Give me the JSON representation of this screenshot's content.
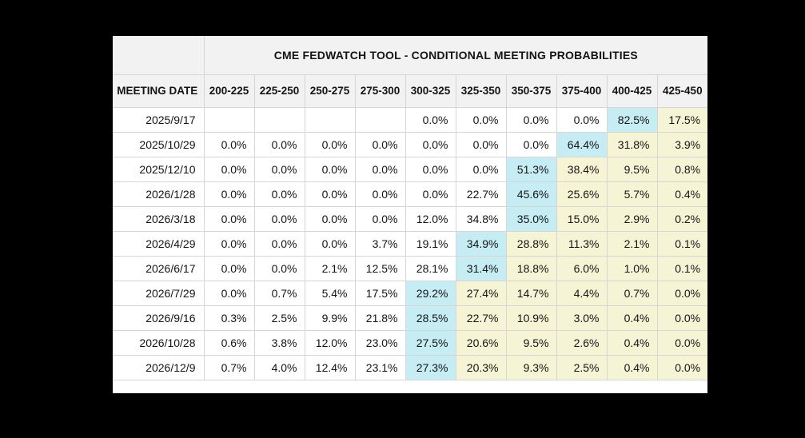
{
  "chart_data": {
    "type": "table",
    "title": "CME FEDWATCH TOOL - CONDITIONAL MEETING PROBABILITIES",
    "row_header": "MEETING DATE",
    "columns": [
      "200-225",
      "225-250",
      "250-275",
      "275-300",
      "300-325",
      "325-350",
      "350-375",
      "375-400",
      "400-425",
      "425-450"
    ],
    "rows": [
      {
        "date": "2025/9/17",
        "cells": [
          "",
          "",
          "",
          "",
          "0.0%",
          "0.0%",
          "0.0%",
          "0.0%",
          "82.5%",
          "17.5%"
        ],
        "highlights": [
          "",
          "",
          "",
          "",
          "",
          "",
          "",
          "",
          "cyan",
          "yellow"
        ]
      },
      {
        "date": "2025/10/29",
        "cells": [
          "0.0%",
          "0.0%",
          "0.0%",
          "0.0%",
          "0.0%",
          "0.0%",
          "0.0%",
          "64.4%",
          "31.8%",
          "3.9%"
        ],
        "highlights": [
          "",
          "",
          "",
          "",
          "",
          "",
          "",
          "cyan",
          "yellow",
          "yellow"
        ]
      },
      {
        "date": "2025/12/10",
        "cells": [
          "0.0%",
          "0.0%",
          "0.0%",
          "0.0%",
          "0.0%",
          "0.0%",
          "51.3%",
          "38.4%",
          "9.5%",
          "0.8%"
        ],
        "highlights": [
          "",
          "",
          "",
          "",
          "",
          "",
          "cyan",
          "yellow",
          "yellow",
          "yellow"
        ]
      },
      {
        "date": "2026/1/28",
        "cells": [
          "0.0%",
          "0.0%",
          "0.0%",
          "0.0%",
          "0.0%",
          "22.7%",
          "45.6%",
          "25.6%",
          "5.7%",
          "0.4%"
        ],
        "highlights": [
          "",
          "",
          "",
          "",
          "",
          "",
          "cyan",
          "yellow",
          "yellow",
          "yellow"
        ]
      },
      {
        "date": "2026/3/18",
        "cells": [
          "0.0%",
          "0.0%",
          "0.0%",
          "0.0%",
          "12.0%",
          "34.8%",
          "35.0%",
          "15.0%",
          "2.9%",
          "0.2%"
        ],
        "highlights": [
          "",
          "",
          "",
          "",
          "",
          "",
          "cyan",
          "yellow",
          "yellow",
          "yellow"
        ]
      },
      {
        "date": "2026/4/29",
        "cells": [
          "0.0%",
          "0.0%",
          "0.0%",
          "3.7%",
          "19.1%",
          "34.9%",
          "28.8%",
          "11.3%",
          "2.1%",
          "0.1%"
        ],
        "highlights": [
          "",
          "",
          "",
          "",
          "",
          "cyan",
          "yellow",
          "yellow",
          "yellow",
          "yellow"
        ]
      },
      {
        "date": "2026/6/17",
        "cells": [
          "0.0%",
          "0.0%",
          "2.1%",
          "12.5%",
          "28.1%",
          "31.4%",
          "18.8%",
          "6.0%",
          "1.0%",
          "0.1%"
        ],
        "highlights": [
          "",
          "",
          "",
          "",
          "",
          "cyan",
          "yellow",
          "yellow",
          "yellow",
          "yellow"
        ]
      },
      {
        "date": "2026/7/29",
        "cells": [
          "0.0%",
          "0.7%",
          "5.4%",
          "17.5%",
          "29.2%",
          "27.4%",
          "14.7%",
          "4.4%",
          "0.7%",
          "0.0%"
        ],
        "highlights": [
          "",
          "",
          "",
          "",
          "cyan",
          "yellow",
          "yellow",
          "yellow",
          "yellow",
          "yellow"
        ]
      },
      {
        "date": "2026/9/16",
        "cells": [
          "0.3%",
          "2.5%",
          "9.9%",
          "21.8%",
          "28.5%",
          "22.7%",
          "10.9%",
          "3.0%",
          "0.4%",
          "0.0%"
        ],
        "highlights": [
          "",
          "",
          "",
          "",
          "cyan",
          "yellow",
          "yellow",
          "yellow",
          "yellow",
          "yellow"
        ]
      },
      {
        "date": "2026/10/28",
        "cells": [
          "0.6%",
          "3.8%",
          "12.0%",
          "23.0%",
          "27.5%",
          "20.6%",
          "9.5%",
          "2.6%",
          "0.4%",
          "0.0%"
        ],
        "highlights": [
          "",
          "",
          "",
          "",
          "cyan",
          "yellow",
          "yellow",
          "yellow",
          "yellow",
          "yellow"
        ]
      },
      {
        "date": "2026/12/9",
        "cells": [
          "0.7%",
          "4.0%",
          "12.4%",
          "23.1%",
          "27.3%",
          "20.3%",
          "9.3%",
          "2.5%",
          "0.4%",
          "0.0%"
        ],
        "highlights": [
          "",
          "",
          "",
          "",
          "cyan",
          "yellow",
          "yellow",
          "yellow",
          "yellow",
          "yellow"
        ]
      }
    ]
  },
  "colors": {
    "page_bg": "#000000",
    "table_bg": "#ffffff",
    "header_bg": "#f2f2f2",
    "grid_line": "#d6d6d6",
    "cyan_highlight": "#c6ecf4",
    "yellow_highlight": "#f5f5d6",
    "text": "#141414"
  }
}
